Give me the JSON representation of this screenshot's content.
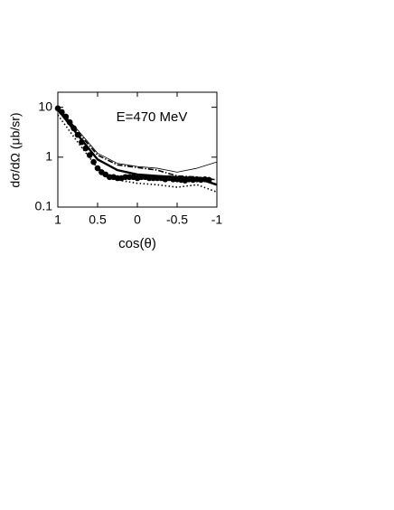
{
  "chart_data": {
    "type": "line",
    "annotation": "E=470 MeV",
    "xlabel": "cos(θ)",
    "ylabel": "dσ/dΩ (μb/sr)",
    "xlim": [
      1,
      -1
    ],
    "xticks": [
      1,
      0.5,
      0,
      -0.5,
      -1
    ],
    "ylim": [
      0.1,
      20
    ],
    "yticks": [
      0.1,
      1,
      10
    ],
    "ylog": true,
    "series": [
      {
        "style": "points",
        "color": "#000000",
        "x": [
          1,
          0.95,
          0.9,
          0.85,
          0.8,
          0.75,
          0.7,
          0.65,
          0.6,
          0.55,
          0.5,
          0.45,
          0.4,
          0.35,
          0.3,
          0.25,
          0.2,
          0.15,
          0.1,
          0.05,
          0,
          -0.05,
          -0.1,
          -0.15,
          -0.2,
          -0.25,
          -0.3,
          -0.35,
          -0.4,
          -0.45,
          -0.5,
          -0.55,
          -0.6,
          -0.65,
          -0.7,
          -0.75,
          -0.8,
          -0.85,
          -0.9
        ],
        "values": [
          9.5,
          8,
          6.5,
          5,
          3.8,
          2.8,
          2.0,
          1.5,
          1.1,
          0.8,
          0.6,
          0.5,
          0.45,
          0.4,
          0.4,
          0.38,
          0.38,
          0.4,
          0.4,
          0.4,
          0.38,
          0.4,
          0.4,
          0.38,
          0.38,
          0.38,
          0.38,
          0.36,
          0.38,
          0.36,
          0.36,
          0.35,
          0.34,
          0.36,
          0.35,
          0.36,
          0.35,
          0.36,
          0.35
        ]
      },
      {
        "style": "thin",
        "color": "#000000",
        "x": [
          1,
          0.75,
          0.5,
          0.25,
          0,
          -0.25,
          -0.5,
          -0.75,
          -1
        ],
        "values": [
          10,
          3.5,
          1.2,
          0.75,
          0.65,
          0.6,
          0.5,
          0.6,
          0.8
        ]
      },
      {
        "style": "dashdot",
        "color": "#000000",
        "x": [
          1,
          0.75,
          0.5,
          0.25,
          0,
          -0.25,
          -0.5,
          -0.75,
          -1
        ],
        "values": [
          9.5,
          3.2,
          1.1,
          0.7,
          0.62,
          0.55,
          0.42,
          0.4,
          0.35
        ]
      },
      {
        "style": "thick",
        "color": "#000000",
        "x": [
          1,
          0.75,
          0.5,
          0.25,
          0,
          -0.25,
          -0.5,
          -0.75,
          -1
        ],
        "values": [
          9,
          2.8,
          0.9,
          0.55,
          0.45,
          0.42,
          0.4,
          0.38,
          0.28
        ]
      },
      {
        "style": "dotted",
        "color": "#000000",
        "x": [
          1,
          0.75,
          0.5,
          0.25,
          0,
          -0.25,
          -0.5,
          -0.75,
          -1
        ],
        "values": [
          7,
          2,
          0.6,
          0.35,
          0.3,
          0.28,
          0.25,
          0.28,
          0.2
        ]
      }
    ]
  }
}
